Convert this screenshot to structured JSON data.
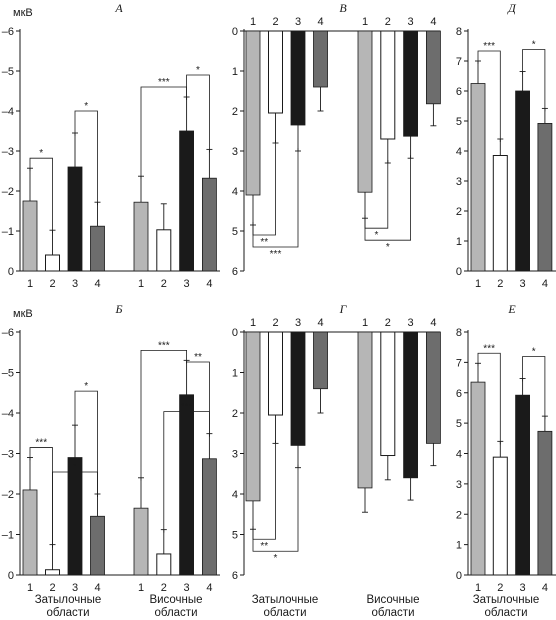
{
  "region_labels": {
    "occipital_1": "Затылочные",
    "occipital_2": "области",
    "temporal_1": "Височные",
    "temporal_2": "области"
  },
  "colors": {
    "1": "#b6b6b6",
    "2": "#ffffff",
    "3": "#1a1a1a",
    "4": "#6d6d6d",
    "stroke": "#1a1a1a"
  },
  "chart_data": [
    {
      "id": "A",
      "type": "bar",
      "title": "А",
      "ylabel": "мкВ",
      "inverted_y": true,
      "ylim": [
        0,
        -6
      ],
      "yticks": [
        0,
        -1,
        -2,
        -3,
        -4,
        -5,
        -6
      ],
      "groups": [
        {
          "name": "",
          "categories": [
            "1",
            "2",
            "3",
            "4"
          ],
          "values": [
            -1.75,
            -0.4,
            -2.6,
            -1.12
          ],
          "errors": [
            0.82,
            0.62,
            0.85,
            0.6
          ]
        },
        {
          "name": "",
          "categories": [
            "1",
            "2",
            "3",
            "4"
          ],
          "values": [
            -1.72,
            -1.03,
            -3.5,
            -2.32
          ],
          "errors": [
            0.65,
            0.65,
            0.85,
            0.72
          ]
        }
      ],
      "significance": [
        {
          "group": 0,
          "from": 1,
          "to": 2,
          "label": "*"
        },
        {
          "group": 0,
          "from": 3,
          "to": 4,
          "label": "*"
        },
        {
          "group": 1,
          "from": 1,
          "to": 3,
          "label": "***"
        },
        {
          "group": 1,
          "from": 3,
          "to": 4,
          "label": "*"
        }
      ]
    },
    {
      "id": "B",
      "type": "bar",
      "title": "Б",
      "ylabel": "мкВ",
      "inverted_y": true,
      "ylim": [
        0,
        -6
      ],
      "yticks": [
        0,
        -1,
        -2,
        -3,
        -4,
        -5,
        -6
      ],
      "groups": [
        {
          "name": "",
          "categories": [
            "1",
            "2",
            "3",
            "4"
          ],
          "values": [
            -2.1,
            -0.13,
            -2.9,
            -1.45
          ],
          "errors": [
            0.8,
            0.62,
            0.8,
            0.55
          ]
        },
        {
          "name": "",
          "categories": [
            "1",
            "2",
            "3",
            "4"
          ],
          "values": [
            -1.65,
            -0.52,
            -4.45,
            -2.87
          ],
          "errors": [
            0.75,
            0.6,
            0.85,
            0.62
          ]
        }
      ],
      "significance": [
        {
          "group": 0,
          "from": 1,
          "to": 2,
          "label": "***"
        },
        {
          "group": 0,
          "from": 2,
          "to": 4,
          "label": "*"
        },
        {
          "group": 0,
          "from": 3,
          "to": 4,
          "label": "*"
        },
        {
          "group": 1,
          "from": 1,
          "to": 3,
          "label": "***"
        },
        {
          "group": 1,
          "from": 2,
          "to": 4,
          "label": "***"
        },
        {
          "group": 1,
          "from": 3,
          "to": 4,
          "label": "**"
        }
      ]
    },
    {
      "id": "V",
      "type": "bar",
      "title": "В",
      "inverted_y": false,
      "ylim": [
        0,
        6
      ],
      "yticks": [
        0,
        1,
        2,
        3,
        4,
        5,
        6
      ],
      "groups": [
        {
          "name": "",
          "categories": [
            "1",
            "2",
            "3",
            "4"
          ],
          "values": [
            4.1,
            2.05,
            2.35,
            1.4
          ],
          "errors": [
            0.75,
            0.75,
            0.65,
            0.6
          ]
        },
        {
          "name": "",
          "categories": [
            "1",
            "2",
            "3",
            "4"
          ],
          "values": [
            4.03,
            2.7,
            2.63,
            1.82
          ],
          "errors": [
            0.65,
            0.6,
            0.55,
            0.55
          ]
        }
      ],
      "significance": [
        {
          "group": 0,
          "from": 1,
          "to": 2,
          "label": "**"
        },
        {
          "group": 0,
          "from": 1,
          "to": 3,
          "label": "***"
        },
        {
          "group": 1,
          "from": 1,
          "to": 2,
          "label": "*"
        },
        {
          "group": 1,
          "from": 1,
          "to": 3,
          "label": "*"
        }
      ]
    },
    {
      "id": "G",
      "type": "bar",
      "title": "Г",
      "inverted_y": false,
      "ylim": [
        0,
        6
      ],
      "yticks": [
        0,
        1,
        2,
        3,
        4,
        5,
        6
      ],
      "groups": [
        {
          "name": "",
          "categories": [
            "1",
            "2",
            "3",
            "4"
          ],
          "values": [
            4.17,
            2.05,
            2.8,
            1.4
          ],
          "errors": [
            0.7,
            0.7,
            0.55,
            0.6
          ]
        },
        {
          "name": "",
          "categories": [
            "1",
            "2",
            "3",
            "4"
          ],
          "values": [
            3.85,
            3.05,
            3.6,
            2.75
          ],
          "errors": [
            0.6,
            0.6,
            0.55,
            0.55
          ]
        }
      ],
      "significance": [
        {
          "group": 0,
          "from": 1,
          "to": 2,
          "label": "**"
        },
        {
          "group": 0,
          "from": 1,
          "to": 3,
          "label": "*"
        }
      ]
    },
    {
      "id": "D",
      "type": "bar",
      "title": "Д",
      "inverted_y": false,
      "ylim": [
        0,
        8
      ],
      "yticks": [
        0,
        1,
        2,
        3,
        4,
        5,
        6,
        7,
        8
      ],
      "groups": [
        {
          "name": "",
          "categories": [
            "1",
            "2",
            "3",
            "4"
          ],
          "values": [
            6.25,
            3.85,
            6.0,
            4.92
          ],
          "errors": [
            0.75,
            0.55,
            0.65,
            0.5
          ]
        }
      ],
      "significance": [
        {
          "group": 0,
          "from": 1,
          "to": 2,
          "label": "***"
        },
        {
          "group": 0,
          "from": 3,
          "to": 4,
          "label": "*"
        }
      ]
    },
    {
      "id": "E",
      "type": "bar",
      "title": "Е",
      "inverted_y": false,
      "ylim": [
        0,
        8
      ],
      "yticks": [
        0,
        1,
        2,
        3,
        4,
        5,
        6,
        7,
        8
      ],
      "groups": [
        {
          "name": "",
          "categories": [
            "1",
            "2",
            "3",
            "4"
          ],
          "values": [
            6.35,
            3.88,
            5.92,
            4.73
          ],
          "errors": [
            0.62,
            0.52,
            0.55,
            0.5
          ]
        }
      ],
      "significance": [
        {
          "group": 0,
          "from": 1,
          "to": 2,
          "label": "***"
        },
        {
          "group": 0,
          "from": 3,
          "to": 4,
          "label": "*"
        }
      ]
    }
  ]
}
